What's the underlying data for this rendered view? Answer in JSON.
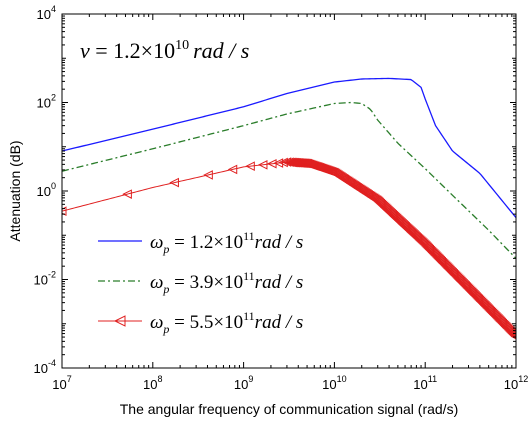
{
  "chart_data": {
    "type": "line",
    "title": "",
    "xlabel": "The angular frequency of communication signal (rad/s)",
    "ylabel": "Attenuation (dB)",
    "xscale": "log",
    "yscale": "log",
    "xlim": [
      10000000,
      1000000000000
    ],
    "ylim": [
      0.0001,
      10000
    ],
    "grid": false,
    "legend_position": "lower-left",
    "x_ticks": [
      {
        "base": "10",
        "exp": "7",
        "value": 10000000
      },
      {
        "base": "10",
        "exp": "8",
        "value": 100000000
      },
      {
        "base": "10",
        "exp": "9",
        "value": 1000000000
      },
      {
        "base": "10",
        "exp": "10",
        "value": 10000000000
      },
      {
        "base": "10",
        "exp": "11",
        "value": 100000000000
      },
      {
        "base": "10",
        "exp": "12",
        "value": 1000000000000
      }
    ],
    "y_ticks": [
      {
        "base": "10",
        "exp": "-4",
        "value": 0.0001
      },
      {
        "base": "10",
        "exp": "-2",
        "value": 0.01
      },
      {
        "base": "10",
        "exp": "0",
        "value": 1
      },
      {
        "base": "10",
        "exp": "2",
        "value": 100
      },
      {
        "base": "10",
        "exp": "4",
        "value": 10000
      }
    ],
    "annotation": {
      "lhs": "v",
      "op": " = 1.2×10",
      "exp": "10",
      "unit": "rad / s"
    },
    "series": [
      {
        "name": "ωp = 1.2×10^11 rad / s",
        "legend": {
          "sym": "ω",
          "sub": "p",
          "op": " = 1.2×10",
          "exp": "11",
          "unit": "rad / s"
        },
        "color": "#1a1aff",
        "style": "solid",
        "marker": "none",
        "points": [
          [
            10000000,
            8
          ],
          [
            100000000,
            25
          ],
          [
            1000000000,
            80
          ],
          [
            3000000000,
            160
          ],
          [
            10000000000,
            290
          ],
          [
            20000000000,
            340
          ],
          [
            40000000000,
            350
          ],
          [
            70000000000,
            330
          ],
          [
            90000000000,
            220
          ],
          [
            100000000000,
            120
          ],
          [
            130000000000,
            30
          ],
          [
            200000000000,
            8
          ],
          [
            400000000000,
            2.5
          ],
          [
            1000000000000,
            0.25
          ]
        ]
      },
      {
        "name": "ωp = 3.9×10^11 rad / s",
        "legend": {
          "sym": "ω",
          "sub": "p",
          "op": " = 3.9×10",
          "exp": "11",
          "unit": "rad / s"
        },
        "color": "#2a7d2a",
        "style": "dash-dot",
        "marker": "none",
        "points": [
          [
            10000000,
            2.8
          ],
          [
            100000000,
            9
          ],
          [
            1000000000,
            30
          ],
          [
            3000000000,
            55
          ],
          [
            10000000000,
            95
          ],
          [
            15000000000,
            100
          ],
          [
            20000000000,
            95
          ],
          [
            25000000000,
            70
          ],
          [
            30000000000,
            40
          ],
          [
            50000000000,
            12
          ],
          [
            100000000000,
            3.2
          ],
          [
            200000000000,
            0.8
          ],
          [
            500000000000,
            0.13
          ],
          [
            1000000000000,
            0.03
          ]
        ]
      },
      {
        "name": "ωp = 5.5×10^11 rad / s",
        "legend": {
          "sym": "ω",
          "sub": "p",
          "op": " = 5.5×10",
          "exp": "11",
          "unit": "rad / s"
        },
        "color": "#e02020",
        "style": "solid",
        "marker": "left-triangle",
        "points": [
          [
            10000000,
            0.35
          ],
          [
            100000000,
            1.2
          ],
          [
            1000000000,
            3.5
          ],
          [
            3000000000,
            4.5
          ],
          [
            5000000000,
            4.2
          ],
          [
            10000000000,
            2.6
          ],
          [
            30000000000,
            0.6
          ],
          [
            100000000000,
            0.06
          ],
          [
            1000000000000,
            0.0005
          ]
        ]
      }
    ]
  }
}
